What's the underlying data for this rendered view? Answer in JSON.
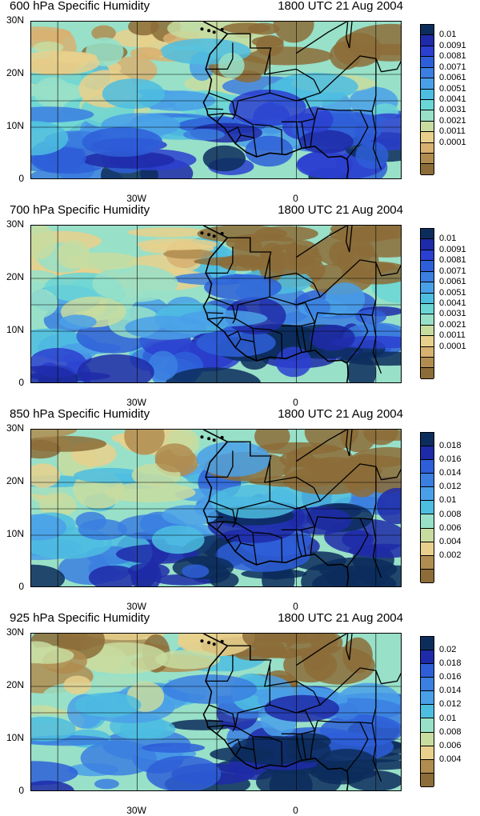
{
  "panels": [
    {
      "title": "600 hPa Specific Humidity",
      "time": "1800 UTC 21 Aug 2004",
      "y_ticks": [
        "30N",
        "20N",
        "10N",
        "0"
      ],
      "x_ticks": [
        "30W",
        "0"
      ],
      "colorbar_labels": [
        "0.01",
        "0.0091",
        "0.0081",
        "0.0071",
        "0.0061",
        "0.0051",
        "0.0041",
        "0.0031",
        "0.0021",
        "0.0011",
        "0.0001"
      ],
      "colorbar_colors": [
        "#0c2d5c",
        "#1e2aa8",
        "#2b3fd0",
        "#2e5fd8",
        "#3b7fe0",
        "#4aa0e8",
        "#4dbde0",
        "#6ad6d6",
        "#98e0c8",
        "#c8dca0",
        "#e8d08c",
        "#d8b070",
        "#b08c50",
        "#8c6c38"
      ],
      "moisture_level": 0.35
    },
    {
      "title": "700 hPa Specific Humidity",
      "time": "1800 UTC 21 Aug 2004",
      "y_ticks": [
        "30N",
        "20N",
        "10N",
        "0"
      ],
      "x_ticks": [
        "30W",
        "0"
      ],
      "colorbar_labels": [
        "0.01",
        "0.0091",
        "0.0081",
        "0.0071",
        "0.0061",
        "0.0051",
        "0.0041",
        "0.0031",
        "0.0021",
        "0.0011",
        "0.0001"
      ],
      "colorbar_colors": [
        "#0c2d5c",
        "#1e2aa8",
        "#2b3fd0",
        "#2e5fd8",
        "#3b7fe0",
        "#4aa0e8",
        "#4dbde0",
        "#6ad6d6",
        "#98e0c8",
        "#c8dca0",
        "#e8d08c",
        "#d8b070",
        "#b08c50",
        "#8c6c38"
      ],
      "moisture_level": 0.55
    },
    {
      "title": "850 hPa Specific Humidity",
      "time": "1800 UTC 21 Aug 2004",
      "y_ticks": [
        "30N",
        "20N",
        "10N",
        "0"
      ],
      "x_ticks": [
        "30W",
        "0"
      ],
      "colorbar_labels": [
        "0.018",
        "0.016",
        "0.014",
        "0.012",
        "0.01",
        "0.008",
        "0.006",
        "0.004",
        "0.002"
      ],
      "colorbar_colors": [
        "#0c2d5c",
        "#1e2aa8",
        "#2e5fd8",
        "#3b7fe0",
        "#4aa0e8",
        "#4dbde0",
        "#98e0c8",
        "#c8dca0",
        "#e8d08c",
        "#b08c50",
        "#8c6c38"
      ],
      "moisture_level": 0.6
    },
    {
      "title": "925 hPa Specific Humidity",
      "time": "1800 UTC 21 Aug 2004",
      "y_ticks": [
        "30N",
        "20N",
        "10N",
        "0"
      ],
      "x_ticks": [
        "30W",
        "0"
      ],
      "colorbar_labels": [
        "0.02",
        "0.018",
        "0.016",
        "0.014",
        "0.012",
        "0.01",
        "0.008",
        "0.006",
        "0.004"
      ],
      "colorbar_colors": [
        "#0c2d5c",
        "#1e2aa8",
        "#2e5fd8",
        "#3b7fe0",
        "#4aa0e8",
        "#4dbde0",
        "#98e0c8",
        "#c8dca0",
        "#e8d08c",
        "#b08c50",
        "#8c6c38"
      ],
      "moisture_level": 0.6
    }
  ]
}
